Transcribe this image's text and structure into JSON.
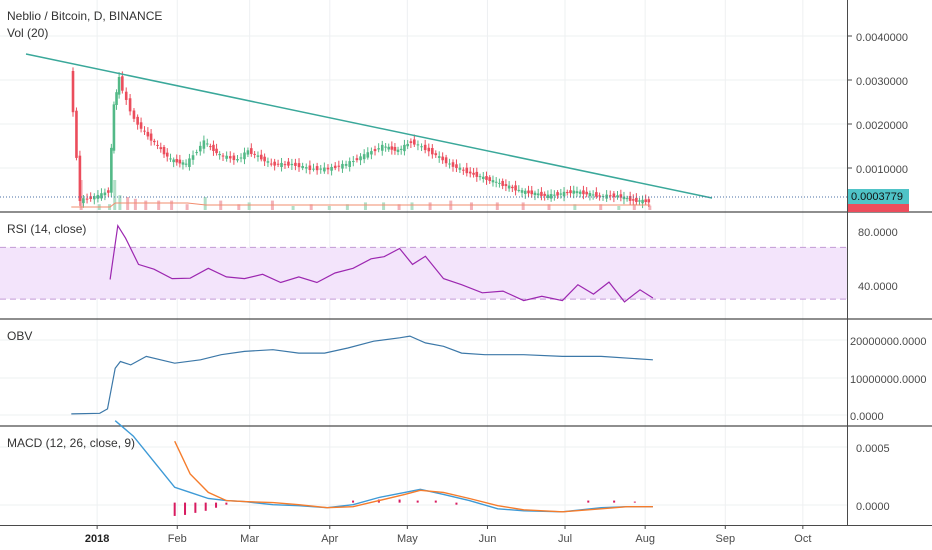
{
  "header": {
    "symbol_title": "Neblio / Bitcoin, D, BINANCE",
    "volume_label": "Vol (20)"
  },
  "colors": {
    "up": "#53b987",
    "down": "#eb4d5c",
    "trendline": "#3aa89a",
    "rsi_line": "#9c27b0",
    "rsi_band": "#f3e4fb",
    "obv_line": "#3c78a8",
    "macd_line": "#3e9ad6",
    "signal_line": "#f57c2c",
    "hist": "#d81b60",
    "price_badge": "#4fc3c7"
  },
  "panes": {
    "price": {
      "y_ticks": [
        "0.0040000",
        "0.0030000",
        "0.0020000",
        "0.0010000"
      ],
      "last_price": "0.0003779"
    },
    "rsi": {
      "label": "RSI (14, close)",
      "y_ticks": [
        "80.0000",
        "40.0000"
      ]
    },
    "obv": {
      "label": "OBV",
      "y_ticks": [
        "20000000.0000",
        "10000000.0000",
        "0.0000"
      ]
    },
    "macd": {
      "label": "MACD (12, 26, close, 9)",
      "y_ticks": [
        "0.0005",
        "0.0000"
      ]
    }
  },
  "x_axis": {
    "labels": [
      "2018",
      "Feb",
      "Mar",
      "Apr",
      "May",
      "Jun",
      "Jul",
      "Aug",
      "Sep",
      "Oct"
    ]
  },
  "chart_data": [
    {
      "type": "line",
      "pane": "price",
      "x": [
        "2017-12-22",
        "2017-12-26",
        "2018-01-02",
        "2018-01-06",
        "2018-01-08",
        "2018-01-10",
        "2018-01-13",
        "2018-01-16",
        "2018-01-20",
        "2018-01-25",
        "2018-01-30",
        "2018-02-05",
        "2018-02-12",
        "2018-02-18",
        "2018-02-25",
        "2018-03-01",
        "2018-03-10",
        "2018-03-18",
        "2018-03-25",
        "2018-04-01",
        "2018-04-08",
        "2018-04-15",
        "2018-04-22",
        "2018-04-28",
        "2018-05-03",
        "2018-05-10",
        "2018-05-18",
        "2018-05-26",
        "2018-06-05",
        "2018-06-15",
        "2018-06-25",
        "2018-07-05",
        "2018-07-15",
        "2018-07-22",
        "2018-07-28",
        "2018-08-03"
      ],
      "values": [
        0.0033,
        0.0004,
        0.0005,
        0.0006,
        0.0025,
        0.0031,
        0.0026,
        0.0022,
        0.0019,
        0.0016,
        0.0013,
        0.0012,
        0.0017,
        0.0014,
        0.0013,
        0.0015,
        0.0012,
        0.0012,
        0.0011,
        0.0011,
        0.0012,
        0.0014,
        0.0016,
        0.0015,
        0.0017,
        0.0015,
        0.0012,
        0.001,
        0.0008,
        0.0006,
        0.0005,
        0.0006,
        0.0005,
        0.0005,
        0.0004,
        0.00038
      ],
      "ylim": [
        0.0003,
        0.0047
      ]
    },
    {
      "type": "line",
      "pane": "rsi",
      "name": "RSI (14, close)",
      "x": [
        "2018-01-06",
        "2018-01-09",
        "2018-01-12",
        "2018-01-17",
        "2018-01-23",
        "2018-01-30",
        "2018-02-06",
        "2018-02-13",
        "2018-02-20",
        "2018-02-27",
        "2018-03-06",
        "2018-03-13",
        "2018-03-20",
        "2018-03-27",
        "2018-04-03",
        "2018-04-10",
        "2018-04-17",
        "2018-04-22",
        "2018-04-28",
        "2018-05-03",
        "2018-05-08",
        "2018-05-15",
        "2018-05-22",
        "2018-05-30",
        "2018-06-07",
        "2018-06-15",
        "2018-06-22",
        "2018-06-30",
        "2018-07-06",
        "2018-07-12",
        "2018-07-18",
        "2018-07-24",
        "2018-07-30",
        "2018-08-04"
      ],
      "values": [
        44,
        88,
        76,
        58,
        52,
        47,
        45,
        55,
        46,
        47,
        48,
        44,
        46,
        44,
        49,
        55,
        60,
        64,
        68,
        58,
        62,
        47,
        40,
        36,
        35,
        30,
        31,
        30,
        40,
        35,
        42,
        29,
        36,
        32
      ],
      "ylim": [
        20,
        92
      ],
      "band": [
        30,
        70
      ]
    },
    {
      "type": "line",
      "pane": "obv",
      "name": "OBV",
      "x": [
        "2017-12-22",
        "2018-01-02",
        "2018-01-05",
        "2018-01-08",
        "2018-01-10",
        "2018-01-14",
        "2018-01-20",
        "2018-01-31",
        "2018-02-10",
        "2018-02-18",
        "2018-02-27",
        "2018-03-10",
        "2018-03-20",
        "2018-03-30",
        "2018-04-08",
        "2018-04-18",
        "2018-04-28",
        "2018-05-02",
        "2018-05-08",
        "2018-05-15",
        "2018-05-22",
        "2018-05-31",
        "2018-06-15",
        "2018-06-30",
        "2018-07-15",
        "2018-08-04"
      ],
      "values": [
        0,
        200000,
        1500000,
        13500000,
        15500000,
        14500000,
        17000000,
        15000000,
        16000000,
        17500000,
        18500000,
        19000000,
        18000000,
        18000000,
        19500000,
        21500000,
        22500000,
        23000000,
        21000000,
        20000000,
        18000000,
        17500000,
        17500000,
        17000000,
        17000000,
        16000000
      ],
      "ylim": [
        -1500000,
        26000000
      ]
    },
    {
      "type": "line",
      "pane": "macd",
      "series": [
        {
          "name": "MACD",
          "x": [
            "2018-01-08",
            "2018-01-15",
            "2018-01-23",
            "2018-01-31",
            "2018-02-06",
            "2018-02-13",
            "2018-02-20",
            "2018-02-27",
            "2018-03-10",
            "2018-03-20",
            "2018-03-31",
            "2018-04-10",
            "2018-04-20",
            "2018-04-30",
            "2018-05-06",
            "2018-05-15",
            "2018-05-25",
            "2018-06-05",
            "2018-06-15",
            "2018-06-30",
            "2018-07-15",
            "2018-07-25",
            "2018-08-04"
          ],
          "values": [
            0.0008,
            0.00065,
            0.0004,
            0.00015,
            0.0001,
            4e-05,
            2e-05,
            1e-05,
            -2e-05,
            -3e-05,
            -5e-05,
            -2e-05,
            5e-05,
            0.0001,
            0.00013,
            8e-05,
            2e-05,
            -6e-05,
            -8e-05,
            -9e-05,
            -5e-05,
            -4e-05,
            -4e-05
          ]
        },
        {
          "name": "Signal",
          "x": [
            "2018-01-31",
            "2018-02-06",
            "2018-02-13",
            "2018-02-20",
            "2018-02-27",
            "2018-03-10",
            "2018-03-20",
            "2018-03-31",
            "2018-04-10",
            "2018-04-20",
            "2018-04-30",
            "2018-05-06",
            "2018-05-15",
            "2018-05-25",
            "2018-06-05",
            "2018-06-15",
            "2018-06-30",
            "2018-07-15",
            "2018-07-25",
            "2018-08-04"
          ],
          "values": [
            0.0006,
            0.00028,
            0.0001,
            2e-05,
            1e-05,
            0.0,
            -2e-05,
            -5e-05,
            -4e-05,
            2e-05,
            8e-05,
            0.00012,
            0.0001,
            4e-05,
            -3e-05,
            -7e-05,
            -9e-05,
            -6e-05,
            -4e-05,
            -4e-05
          ]
        }
      ],
      "histogram": {
        "x": [
          "2018-01-31",
          "2018-02-04",
          "2018-02-08",
          "2018-02-12",
          "2018-02-16",
          "2018-02-20",
          "2018-04-10",
          "2018-04-20",
          "2018-04-28",
          "2018-05-05",
          "2018-05-12",
          "2018-05-20",
          "2018-07-10",
          "2018-07-20",
          "2018-07-28"
        ],
        "values": [
          -0.00013,
          -0.00012,
          -0.0001,
          -8e-05,
          -5e-05,
          -2e-05,
          2e-05,
          3e-05,
          3e-05,
          2e-05,
          2e-05,
          -2e-05,
          2e-05,
          2e-05,
          1e-05
        ]
      },
      "ylim": [
        -0.00016,
        0.00068
      ]
    }
  ]
}
